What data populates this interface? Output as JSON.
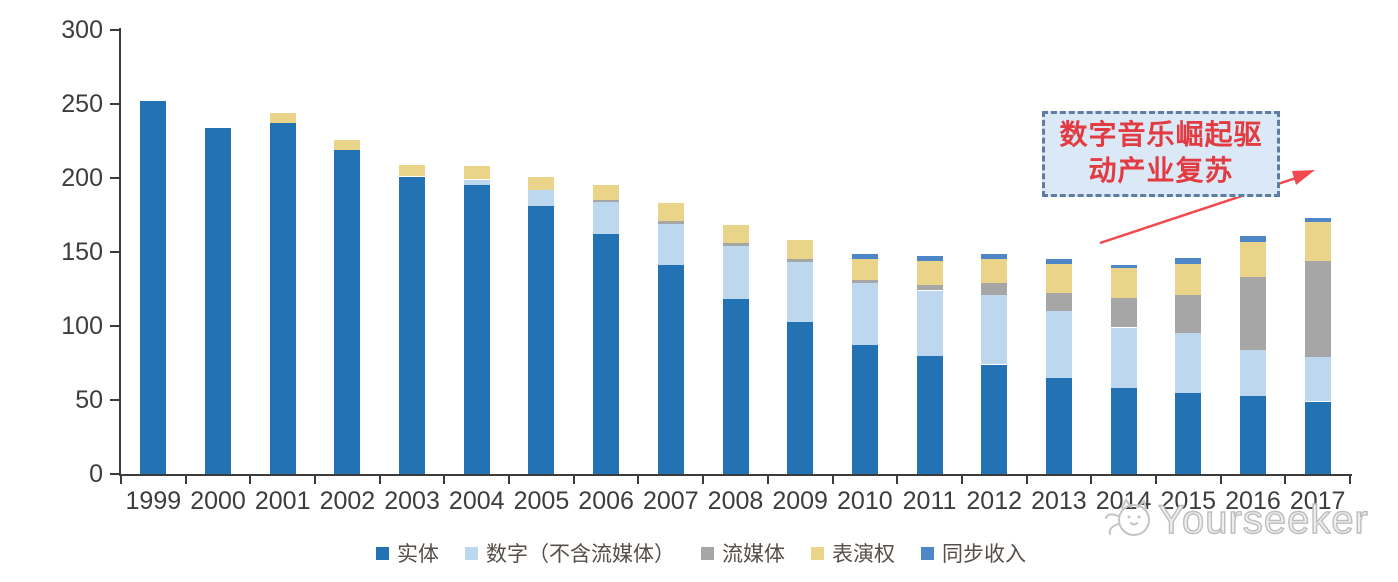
{
  "chart_data": {
    "type": "bar",
    "stacked": true,
    "title": "",
    "xlabel": "",
    "ylabel": "",
    "ylim": [
      0,
      300
    ],
    "yticks": [
      0,
      50,
      100,
      150,
      200,
      250,
      300
    ],
    "grid": false,
    "legend_position": "bottom",
    "categories": [
      "1999",
      "2000",
      "2001",
      "2002",
      "2003",
      "2004",
      "2005",
      "2006",
      "2007",
      "2008",
      "2009",
      "2010",
      "2011",
      "2012",
      "2013",
      "2014",
      "2015",
      "2016",
      "2017"
    ],
    "series": [
      {
        "name": "实体",
        "color": "#2373b4",
        "values": [
          252,
          234,
          237,
          219,
          201,
          195,
          181,
          162,
          141,
          118,
          103,
          87,
          80,
          74,
          65,
          58,
          55,
          53,
          49
        ]
      },
      {
        "name": "数字（不含流媒体）",
        "color": "#bdd7ee",
        "values": [
          0,
          0,
          0,
          0,
          0,
          4,
          11,
          22,
          28,
          36,
          40,
          42,
          44,
          47,
          45,
          41,
          40,
          31,
          30
        ]
      },
      {
        "name": "流媒体",
        "color": "#a6a6a6",
        "values": [
          0,
          0,
          0,
          0,
          0,
          0,
          0,
          1,
          2,
          2,
          2,
          2,
          4,
          8,
          12,
          20,
          26,
          49,
          65
        ]
      },
      {
        "name": "表演权",
        "color": "#e9d48a",
        "values": [
          0,
          0,
          7,
          7,
          8,
          9,
          9,
          10,
          12,
          12,
          13,
          14,
          16,
          16,
          20,
          20,
          21,
          24,
          26
        ]
      },
      {
        "name": "同步收入",
        "color": "#4e87c8",
        "values": [
          0,
          0,
          0,
          0,
          0,
          0,
          0,
          0,
          0,
          0,
          0,
          4,
          3,
          4,
          3,
          2,
          4,
          4,
          3
        ]
      }
    ]
  },
  "annotation": {
    "lines": [
      "数字音乐崛起驱",
      "动产业复苏"
    ]
  },
  "watermark": {
    "text": "Yourseeker",
    "logo": "cat-logo-icon"
  },
  "colors": {
    "axis": "#3b3b3b",
    "annotation_border": "#5f7da0",
    "annotation_fill": "#dbe8f6",
    "annotation_text": "#e23b42",
    "arrow": "#f1494f",
    "watermark": "#bdbdbd"
  }
}
